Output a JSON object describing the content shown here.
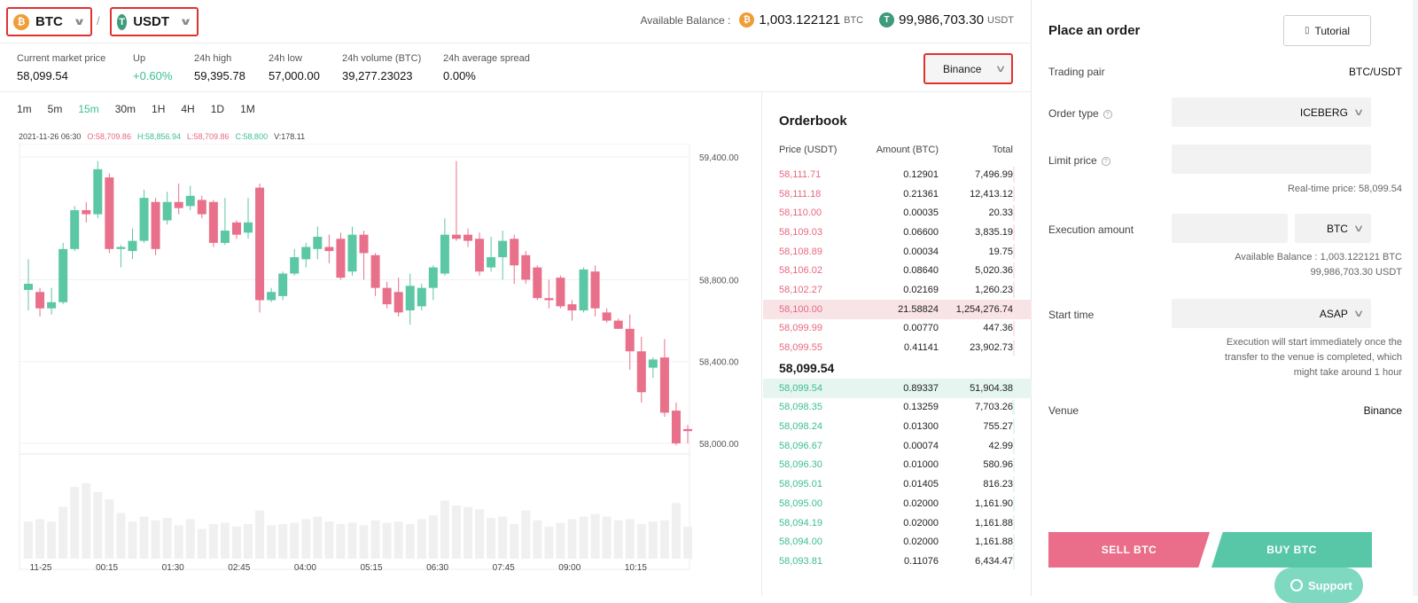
{
  "pair": {
    "base": {
      "symbol": "BTC",
      "icon": "btc-coin-icon",
      "color": "#f09c38",
      "glyph": "₿"
    },
    "quote": {
      "symbol": "USDT",
      "icon": "usdt-coin-icon",
      "color": "#3e9b7b",
      "glyph": "T"
    },
    "separator": "/"
  },
  "balance": {
    "label": "Available Balance :",
    "btc_amount": "1,003.122121",
    "btc_unit": "BTC",
    "usdt_amount": "99,986,703.30",
    "usdt_unit": "USDT"
  },
  "stats": [
    {
      "label": "Current market price",
      "value": "58,099.54",
      "color": "default"
    },
    {
      "label": "Up",
      "value": "+0.60%",
      "color": "green"
    },
    {
      "label": "24h high",
      "value": "59,395.78",
      "color": "default"
    },
    {
      "label": "24h low",
      "value": "57,000.00",
      "color": "default"
    },
    {
      "label": "24h volume (BTC)",
      "value": "39,277.23023",
      "color": "default"
    },
    {
      "label": "24h average spread",
      "value": "0.00%",
      "color": "default"
    }
  ],
  "venue_select": {
    "value": "Binance"
  },
  "timeframes": [
    "1m",
    "5m",
    "15m",
    "30m",
    "1H",
    "4H",
    "1D",
    "1M"
  ],
  "active_timeframe": "15m",
  "ohlc": {
    "date": "2021-11-26 06:30",
    "o": "O:58,709.86",
    "h": "H:58,856.94",
    "l": "L:58,709.86",
    "c": "C:58,800",
    "v": "V:178.11"
  },
  "chart_data": {
    "type": "candlestick",
    "y_ticks": [
      "59,400.00",
      "58,800.00",
      "58,400.00",
      "58,000.00"
    ],
    "y_tick_values": [
      59400,
      58800,
      58400,
      58000
    ],
    "x_labels": [
      "11-25",
      "00:15",
      "01:30",
      "02:45",
      "04:00",
      "05:15",
      "06:30",
      "07:45",
      "09:00",
      "10:15"
    ],
    "candles": [
      [
        58750,
        58780,
        58650,
        58900
      ],
      [
        58740,
        58660,
        58620,
        58760
      ],
      [
        58660,
        58690,
        58630,
        58760
      ],
      [
        58690,
        58950,
        58680,
        58980
      ],
      [
        58950,
        59140,
        58940,
        59160
      ],
      [
        59140,
        59120,
        59080,
        59180
      ],
      [
        59120,
        59340,
        59100,
        59380
      ],
      [
        59300,
        58950,
        58930,
        59320
      ],
      [
        58950,
        58960,
        58860,
        58970
      ],
      [
        58940,
        58990,
        58900,
        59050
      ],
      [
        58990,
        59200,
        58980,
        59240
      ],
      [
        59180,
        58950,
        58920,
        59200
      ],
      [
        59090,
        59180,
        59070,
        59230
      ],
      [
        59180,
        59150,
        59120,
        59270
      ],
      [
        59160,
        59210,
        59140,
        59260
      ],
      [
        59190,
        59120,
        59100,
        59210
      ],
      [
        59180,
        58980,
        58960,
        59190
      ],
      [
        58980,
        59040,
        58970,
        59200
      ],
      [
        59080,
        59020,
        59000,
        59090
      ],
      [
        59030,
        59080,
        59000,
        59200
      ],
      [
        59250,
        58700,
        58640,
        59270
      ],
      [
        58700,
        58740,
        58690,
        58760
      ],
      [
        58720,
        58830,
        58700,
        58840
      ],
      [
        58830,
        58910,
        58820,
        58950
      ],
      [
        58900,
        58960,
        58860,
        58980
      ],
      [
        58950,
        59010,
        58900,
        59060
      ],
      [
        58960,
        58940,
        58880,
        59020
      ],
      [
        59000,
        58810,
        58800,
        59030
      ],
      [
        58840,
        59020,
        58820,
        59060
      ],
      [
        59020,
        58930,
        58800,
        59040
      ],
      [
        58920,
        58760,
        58720,
        58930
      ],
      [
        58760,
        58680,
        58660,
        58790
      ],
      [
        58740,
        58640,
        58620,
        58810
      ],
      [
        58650,
        58770,
        58580,
        58830
      ],
      [
        58670,
        58760,
        58650,
        58780
      ],
      [
        58760,
        58860,
        58700,
        58870
      ],
      [
        58830,
        59020,
        58820,
        59100
      ],
      [
        59020,
        59000,
        58990,
        59380
      ],
      [
        59020,
        58990,
        58960,
        59050
      ],
      [
        59000,
        58840,
        58820,
        59030
      ],
      [
        58860,
        58910,
        58840,
        59010
      ],
      [
        58910,
        58990,
        58800,
        59040
      ],
      [
        59000,
        58870,
        58780,
        59020
      ],
      [
        58920,
        58800,
        58780,
        58940
      ],
      [
        58860,
        58710,
        58700,
        58870
      ],
      [
        58710,
        58700,
        58660,
        58800
      ],
      [
        58810,
        58670,
        58660,
        58820
      ],
      [
        58680,
        58650,
        58600,
        58700
      ],
      [
        58650,
        58850,
        58640,
        58860
      ],
      [
        58840,
        58660,
        58620,
        58870
      ],
      [
        58640,
        58600,
        58590,
        58660
      ],
      [
        58600,
        58560,
        58560,
        58610
      ],
      [
        58560,
        58450,
        58360,
        58630
      ],
      [
        58450,
        58250,
        58200,
        58520
      ],
      [
        58370,
        58410,
        58320,
        58420
      ],
      [
        58420,
        58150,
        58130,
        58510
      ],
      [
        58160,
        58000,
        57990,
        58200
      ],
      [
        58070,
        58060,
        58000,
        58090
      ]
    ],
    "volumes": [
      3,
      3.2,
      3,
      4.2,
      5.8,
      6.1,
      5.4,
      4.8,
      3.7,
      3,
      3.4,
      3.1,
      3.3,
      2.7,
      3.2,
      2.4,
      2.8,
      2.9,
      2.6,
      2.8,
      3.9,
      2.7,
      2.8,
      2.9,
      3.2,
      3.4,
      3,
      2.8,
      2.9,
      2.7,
      3.1,
      2.9,
      3,
      2.8,
      3.2,
      3.5,
      4.7,
      4.3,
      4.2,
      4,
      3.3,
      3.4,
      2.8,
      3.9,
      3.1,
      2.6,
      2.9,
      3.2,
      3.4,
      3.6,
      3.4,
      3.1,
      3.2,
      2.8,
      3,
      3.1,
      4.5,
      2.6
    ],
    "ylim": [
      57980,
      59420
    ]
  },
  "orderbook": {
    "title": "Orderbook",
    "headers": {
      "price": "Price (USDT)",
      "amount": "Amount (BTC)",
      "total": "Total"
    },
    "asks": [
      {
        "price": "58,111.71",
        "amount": "0.12901",
        "total": "7,496.99",
        "depth": 0.02
      },
      {
        "price": "58,111.18",
        "amount": "0.21361",
        "total": "12,413.12",
        "depth": 0.03
      },
      {
        "price": "58,110.00",
        "amount": "0.00035",
        "total": "20.33",
        "depth": 0.0
      },
      {
        "price": "58,109.03",
        "amount": "0.06600",
        "total": "3,835.19",
        "depth": 0.01
      },
      {
        "price": "58,108.89",
        "amount": "0.00034",
        "total": "19.75",
        "depth": 0.0
      },
      {
        "price": "58,106.02",
        "amount": "0.08640",
        "total": "5,020.36",
        "depth": 0.01
      },
      {
        "price": "58,102.27",
        "amount": "0.02169",
        "total": "1,260.23",
        "depth": 0.0
      },
      {
        "price": "58,100.00",
        "amount": "21.58824",
        "total": "1,254,276.74",
        "depth": 1.0
      },
      {
        "price": "58,099.99",
        "amount": "0.00770",
        "total": "447.36",
        "depth": 0.0
      },
      {
        "price": "58,099.55",
        "amount": "0.41141",
        "total": "23,902.73",
        "depth": 0.04
      }
    ],
    "mid_price": "58,099.54",
    "bids": [
      {
        "price": "58,099.54",
        "amount": "0.89337",
        "total": "51,904.38",
        "depth": 1.0
      },
      {
        "price": "58,098.35",
        "amount": "0.13259",
        "total": "7,703.26",
        "depth": 0.16
      },
      {
        "price": "58,098.24",
        "amount": "0.01300",
        "total": "755.27",
        "depth": 0.04
      },
      {
        "price": "58,096.67",
        "amount": "0.00074",
        "total": "42.99",
        "depth": 0.01
      },
      {
        "price": "58,096.30",
        "amount": "0.01000",
        "total": "580.96",
        "depth": 0.03
      },
      {
        "price": "58,095.01",
        "amount": "0.01405",
        "total": "816.23",
        "depth": 0.03
      },
      {
        "price": "58,095.00",
        "amount": "0.02000",
        "total": "1,161.90",
        "depth": 0.04
      },
      {
        "price": "58,094.19",
        "amount": "0.02000",
        "total": "1,161.88",
        "depth": 0.04
      },
      {
        "price": "58,094.00",
        "amount": "0.02000",
        "total": "1,161.88",
        "depth": 0.04
      },
      {
        "price": "58,093.81",
        "amount": "0.11076",
        "total": "6,434.47",
        "depth": 0.13
      }
    ]
  },
  "order_panel": {
    "title": "Place an order",
    "tutorial_label": "Tutorial",
    "trading_pair_label": "Trading pair",
    "trading_pair_value": "BTC/USDT",
    "order_type_label": "Order type",
    "order_type_value": "ICEBERG",
    "limit_price_label": "Limit price",
    "limit_price_value": "",
    "realtime_price_note": "Real-time price: 58,099.54",
    "execution_amount_label": "Execution amount",
    "execution_amount_value": "",
    "execution_unit": "BTC",
    "available_balance_note_1": "Available Balance :  1,003.122121 BTC",
    "available_balance_note_2": "99,986,703.30 USDT",
    "start_time_label": "Start time",
    "start_time_value": "ASAP",
    "start_note_1": "Execution will start immediately once the",
    "start_note_2": "transfer to the venue is completed, which",
    "start_note_3": "might take around 1 hour",
    "venue_label": "Venue",
    "venue_value": "Binance",
    "sell_label": "SELL  BTC",
    "buy_label": "BUY  BTC",
    "support_label": "Support"
  }
}
